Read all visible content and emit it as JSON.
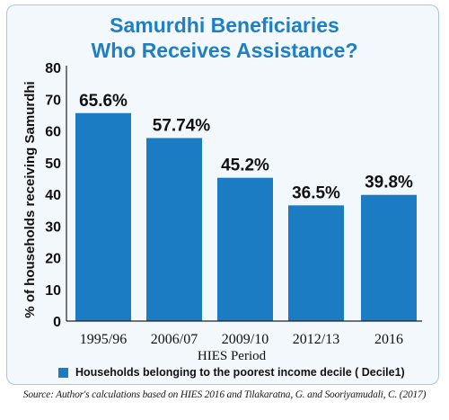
{
  "title_line1": "Samurdhi Beneficiaries",
  "title_line2": "Who Receives Assistance?",
  "source": "Source: Author's calculations based on HIES 2016 and Tilakaratna, G. and Sooriyamudali, C. (2017)",
  "colors": {
    "bar": "#1b7bc3",
    "title": "#1f7fc5",
    "background": "#f3f8fc"
  },
  "chart_data": {
    "type": "bar",
    "categories": [
      "1995/96",
      "2006/07",
      "2009/10",
      "2012/13",
      "2016"
    ],
    "values": [
      65.6,
      57.74,
      45.2,
      36.5,
      39.8
    ],
    "data_labels": [
      "65.6%",
      "57.74%",
      "45.2%",
      "36.5%",
      "39.8%"
    ],
    "xlabel": "HIES Period",
    "ylabel": "% of households receiving Samurdhi",
    "ylim": [
      0,
      80
    ],
    "yticks": [
      0,
      10,
      20,
      30,
      40,
      50,
      60,
      70,
      80
    ],
    "grid": false,
    "legend": {
      "placement": "bottom",
      "entries": [
        "Households belonging to the poorest income decile ( Decile1)"
      ]
    }
  }
}
